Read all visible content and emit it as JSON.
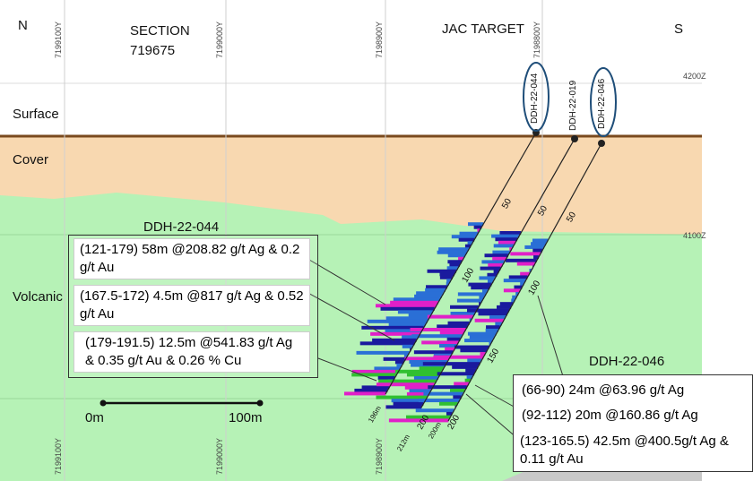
{
  "header": {
    "north": "N",
    "south": "S",
    "section_title": "SECTION",
    "section_number": "719675",
    "target": "JAC TARGET"
  },
  "northings_top": [
    "7199100Y",
    "7199000Y",
    "7198900Y",
    "7198800Y"
  ],
  "northings_bottom": [
    "7199100Y",
    "7199000Y",
    "7198900Y"
  ],
  "elevations": [
    "4200Z",
    "4100Z"
  ],
  "layers": [
    "Surface",
    "Cover",
    "Volcanic"
  ],
  "holes": [
    "DDH-22-044",
    "DDH-22-019",
    "DDH-22-046"
  ],
  "depth_labels": [
    "50",
    "50",
    "50",
    "100",
    "100",
    "150",
    "200",
    "200",
    "200m",
    "196m",
    "212m"
  ],
  "callouts": [
    {
      "title": "DDH-22-044",
      "intervals": [
        "(121-179) 58m @208.82 g/t Ag & 0.2 g/t Au",
        "(167.5-172) 4.5m @817 g/t Ag & 0.52 g/t Au",
        "(179-191.5) 12.5m @541.83 g/t Ag & 0.35 g/t Au & 0.26 % Cu"
      ]
    },
    {
      "title": "DDH-22-046",
      "intervals": [
        "(66-90) 24m @63.96 g/t Ag",
        "(92-112) 20m @160.86 g/t Ag",
        "(123-165.5) 42.5m @400.5g/t Ag & 0.11 g/t Au"
      ]
    }
  ],
  "scale": [
    "0m",
    "100m"
  ]
}
